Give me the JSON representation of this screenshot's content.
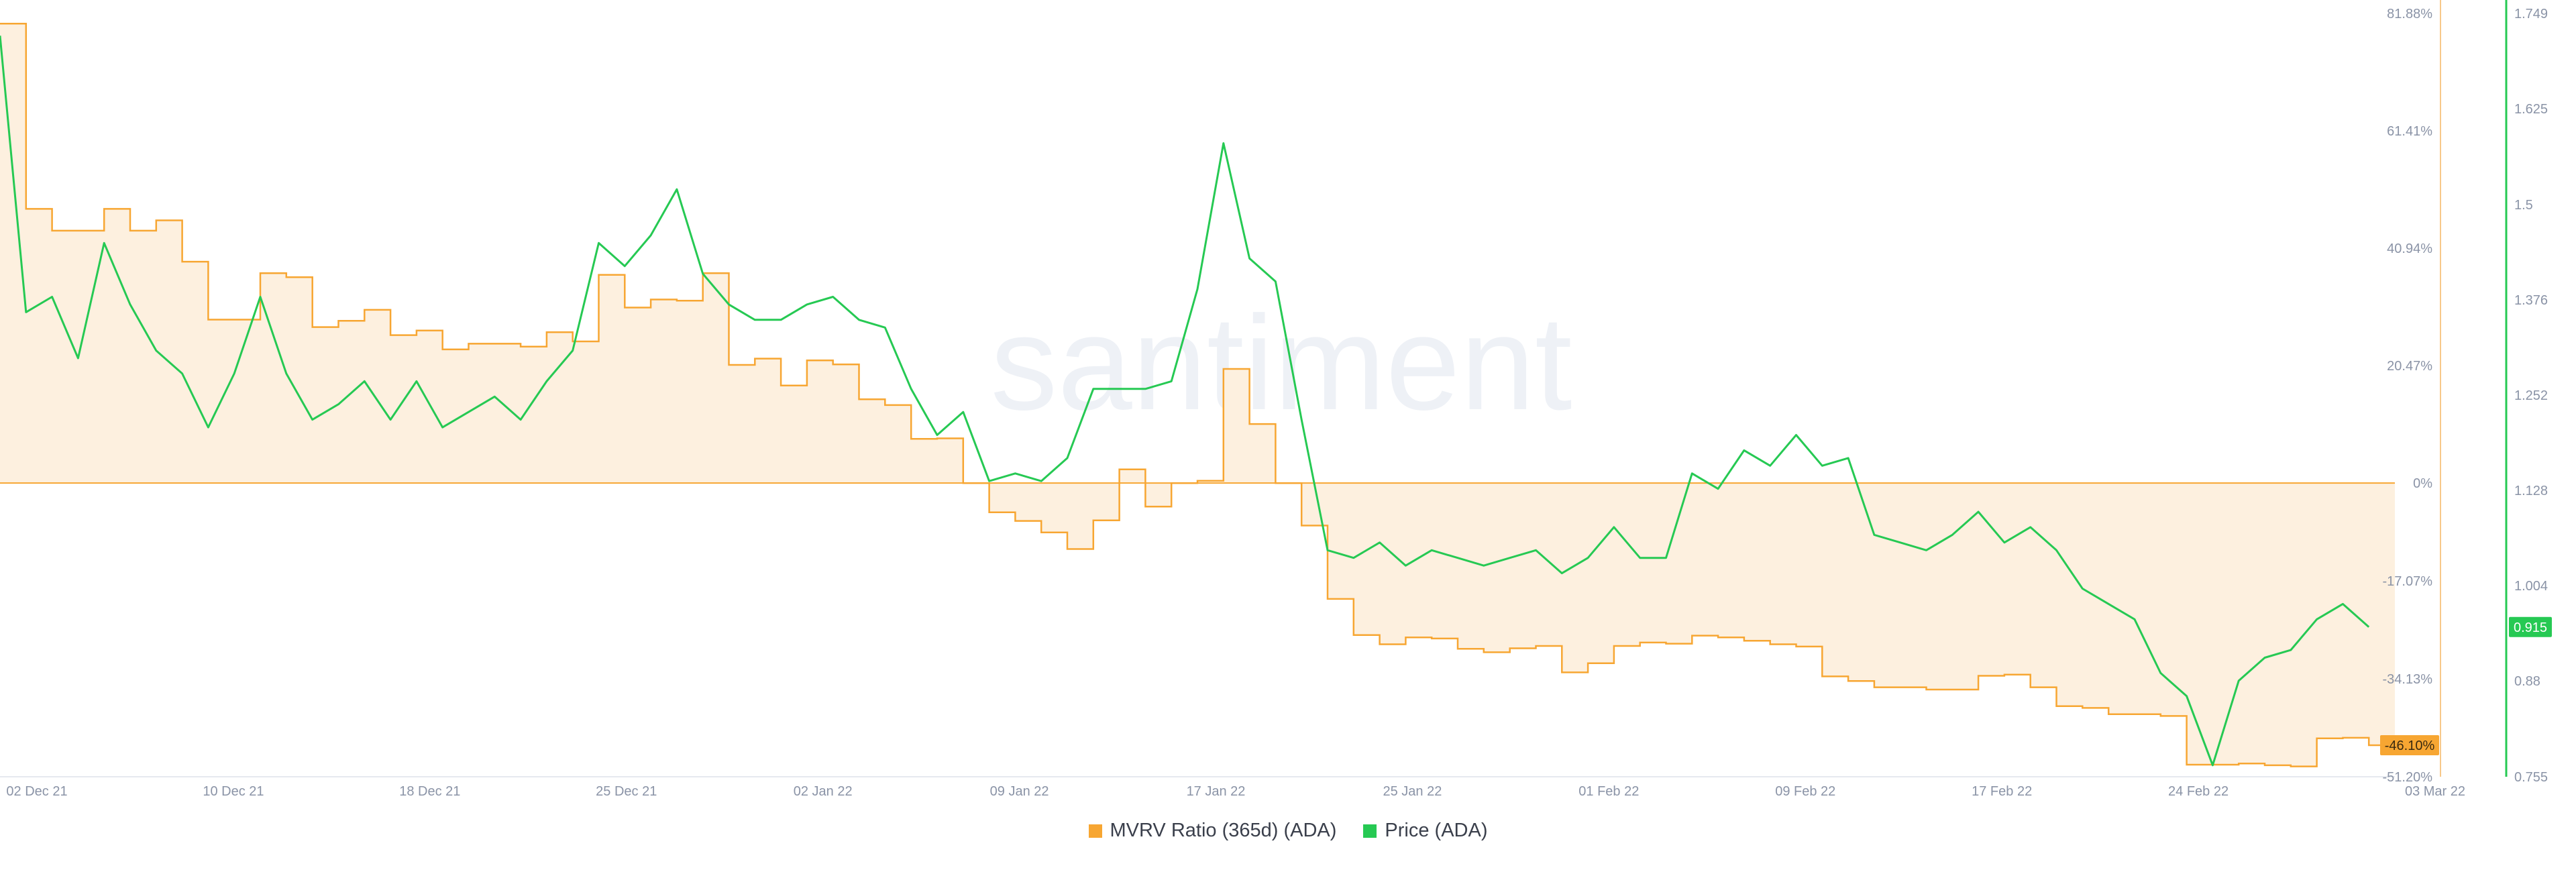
{
  "watermark": "santiment",
  "colors": {
    "mvrv": "#f7a632",
    "mvrv_fill": "#fdf0df",
    "price": "#26c953",
    "grid": "#e6e9ef",
    "tick": "#8a93a6",
    "mvrv_axis": "#f7c98a",
    "price_axis": "#26c953"
  },
  "chart_data": {
    "type": "line",
    "x_range": [
      "2021-12-01",
      "2022-03-03"
    ],
    "x_ticks": [
      "02 Dec 21",
      "10 Dec 21",
      "18 Dec 21",
      "25 Dec 21",
      "02 Jan 22",
      "09 Jan 22",
      "17 Jan 22",
      "25 Jan 22",
      "01 Feb 22",
      "09 Feb 22",
      "17 Feb 22",
      "24 Feb 22",
      "03 Mar 22"
    ],
    "y_left": {
      "ticks": [
        "81.88%",
        "61.41%",
        "40.94%",
        "20.47%",
        "0%",
        "-17.07%",
        "-34.13%",
        "-51.20%"
      ],
      "range": [
        -51.2,
        81.88
      ]
    },
    "y_right": {
      "ticks": [
        "1.749",
        "1.625",
        "1.5",
        "1.376",
        "1.252",
        "1.128",
        "1.004",
        "0.88",
        "0.755"
      ],
      "range": [
        0.755,
        1.749
      ]
    },
    "grid": false,
    "legend_position": "bottom-center",
    "series": [
      {
        "name": "MVRV Ratio (365d) (ADA)",
        "axis": "left",
        "style": "step-area",
        "last_label": "-46.10%",
        "x": [
          "2021-12-01",
          "2021-12-02",
          "2021-12-03",
          "2021-12-04",
          "2021-12-05",
          "2021-12-06",
          "2021-12-07",
          "2021-12-08",
          "2021-12-09",
          "2021-12-10",
          "2021-12-11",
          "2021-12-12",
          "2021-12-13",
          "2021-12-14",
          "2021-12-15",
          "2021-12-16",
          "2021-12-17",
          "2021-12-18",
          "2021-12-19",
          "2021-12-20",
          "2021-12-21",
          "2021-12-22",
          "2021-12-23",
          "2021-12-24",
          "2021-12-25",
          "2021-12-26",
          "2021-12-27",
          "2021-12-28",
          "2021-12-29",
          "2021-12-30",
          "2021-12-31",
          "2022-01-01",
          "2022-01-02",
          "2022-01-03",
          "2022-01-04",
          "2022-01-05",
          "2022-01-06",
          "2022-01-07",
          "2022-01-08",
          "2022-01-09",
          "2022-01-10",
          "2022-01-11",
          "2022-01-12",
          "2022-01-13",
          "2022-01-14",
          "2022-01-15",
          "2022-01-16",
          "2022-01-17",
          "2022-01-18",
          "2022-01-19",
          "2022-01-20",
          "2022-01-21",
          "2022-01-22",
          "2022-01-23",
          "2022-01-24",
          "2022-01-25",
          "2022-01-26",
          "2022-01-27",
          "2022-01-28",
          "2022-01-29",
          "2022-01-30",
          "2022-01-31",
          "2022-02-01",
          "2022-02-02",
          "2022-02-03",
          "2022-02-04",
          "2022-02-05",
          "2022-02-06",
          "2022-02-07",
          "2022-02-08",
          "2022-02-09",
          "2022-02-10",
          "2022-02-11",
          "2022-02-12",
          "2022-02-13",
          "2022-02-14",
          "2022-02-15",
          "2022-02-16",
          "2022-02-17",
          "2022-02-18",
          "2022-02-19",
          "2022-02-20",
          "2022-02-21",
          "2022-02-22",
          "2022-02-23",
          "2022-02-24",
          "2022-02-25",
          "2022-02-26",
          "2022-02-27",
          "2022-02-28",
          "2022-03-01",
          "2022-03-02"
        ],
        "values": [
          80.1,
          47.8,
          44.0,
          44.0,
          47.8,
          44.0,
          45.8,
          38.6,
          28.5,
          28.5,
          36.6,
          35.9,
          27.2,
          28.3,
          30.2,
          25.8,
          26.6,
          23.3,
          24.3,
          24.3,
          23.8,
          26.3,
          24.7,
          36.3,
          30.6,
          32.0,
          31.8,
          36.6,
          20.6,
          21.7,
          17.0,
          21.4,
          20.7,
          14.6,
          13.6,
          7.7,
          7.8,
          0.0,
          -5.1,
          -6.6,
          -8.6,
          -11.5,
          -6.5,
          2.4,
          -4.1,
          0.0,
          0.4,
          19.9,
          10.3,
          0.0,
          -7.4,
          -20.2,
          -26.5,
          -28.1,
          -26.9,
          -27.1,
          -28.9,
          -29.5,
          -28.8,
          -28.4,
          -33.0,
          -31.4,
          -28.4,
          -27.8,
          -28.0,
          -26.6,
          -26.9,
          -27.5,
          -28.1,
          -28.5,
          -33.7,
          -34.5,
          -35.6,
          -35.6,
          -36.0,
          -36.0,
          -33.6,
          -33.4,
          -35.6,
          -38.9,
          -39.2,
          -40.3,
          -40.3,
          -40.6,
          -49.1,
          -49.1,
          -48.9,
          -49.2,
          -49.4,
          -44.5,
          -44.4,
          -45.7
        ]
      },
      {
        "name": "Price (ADA)",
        "axis": "right",
        "style": "line",
        "last_label": "0.915",
        "x": [
          "2021-12-01",
          "2021-12-02",
          "2021-12-03",
          "2021-12-04",
          "2021-12-05",
          "2021-12-06",
          "2021-12-07",
          "2021-12-08",
          "2021-12-09",
          "2021-12-10",
          "2021-12-11",
          "2021-12-12",
          "2021-12-13",
          "2021-12-14",
          "2021-12-15",
          "2021-12-16",
          "2021-12-17",
          "2021-12-18",
          "2021-12-19",
          "2021-12-20",
          "2021-12-21",
          "2021-12-22",
          "2021-12-23",
          "2021-12-24",
          "2021-12-25",
          "2021-12-26",
          "2021-12-27",
          "2021-12-28",
          "2021-12-29",
          "2021-12-30",
          "2021-12-31",
          "2022-01-01",
          "2022-01-02",
          "2022-01-03",
          "2022-01-04",
          "2022-01-05",
          "2022-01-06",
          "2022-01-07",
          "2022-01-08",
          "2022-01-09",
          "2022-01-10",
          "2022-01-11",
          "2022-01-12",
          "2022-01-13",
          "2022-01-14",
          "2022-01-15",
          "2022-01-16",
          "2022-01-17",
          "2022-01-18",
          "2022-01-19",
          "2022-01-20",
          "2022-01-21",
          "2022-01-22",
          "2022-01-23",
          "2022-01-24",
          "2022-01-25",
          "2022-01-26",
          "2022-01-27",
          "2022-01-28",
          "2022-01-29",
          "2022-01-30",
          "2022-01-31",
          "2022-02-01",
          "2022-02-02",
          "2022-02-03",
          "2022-02-04",
          "2022-02-05",
          "2022-02-06",
          "2022-02-07",
          "2022-02-08",
          "2022-02-09",
          "2022-02-10",
          "2022-02-11",
          "2022-02-12",
          "2022-02-13",
          "2022-02-14",
          "2022-02-15",
          "2022-02-16",
          "2022-02-17",
          "2022-02-18",
          "2022-02-19",
          "2022-02-20",
          "2022-02-21",
          "2022-02-22",
          "2022-02-23",
          "2022-02-24",
          "2022-02-25",
          "2022-02-26",
          "2022-02-27",
          "2022-02-28",
          "2022-03-01",
          "2022-03-02"
        ],
        "values": [
          1.72,
          1.36,
          1.38,
          1.3,
          1.45,
          1.37,
          1.31,
          1.28,
          1.21,
          1.28,
          1.38,
          1.28,
          1.22,
          1.24,
          1.27,
          1.22,
          1.27,
          1.21,
          1.23,
          1.25,
          1.22,
          1.27,
          1.31,
          1.45,
          1.42,
          1.46,
          1.52,
          1.41,
          1.37,
          1.35,
          1.35,
          1.37,
          1.38,
          1.35,
          1.34,
          1.26,
          1.2,
          1.23,
          1.14,
          1.15,
          1.14,
          1.17,
          1.26,
          1.26,
          1.26,
          1.27,
          1.39,
          1.58,
          1.43,
          1.4,
          1.22,
          1.05,
          1.04,
          1.06,
          1.03,
          1.05,
          1.04,
          1.03,
          1.04,
          1.05,
          1.02,
          1.04,
          1.08,
          1.04,
          1.04,
          1.15,
          1.13,
          1.18,
          1.16,
          1.2,
          1.16,
          1.17,
          1.07,
          1.06,
          1.05,
          1.07,
          1.1,
          1.06,
          1.08,
          1.05,
          1.0,
          0.98,
          0.96,
          0.89,
          0.86,
          0.77,
          0.88,
          0.91,
          0.92,
          0.96,
          0.98,
          0.95
        ]
      }
    ]
  }
}
